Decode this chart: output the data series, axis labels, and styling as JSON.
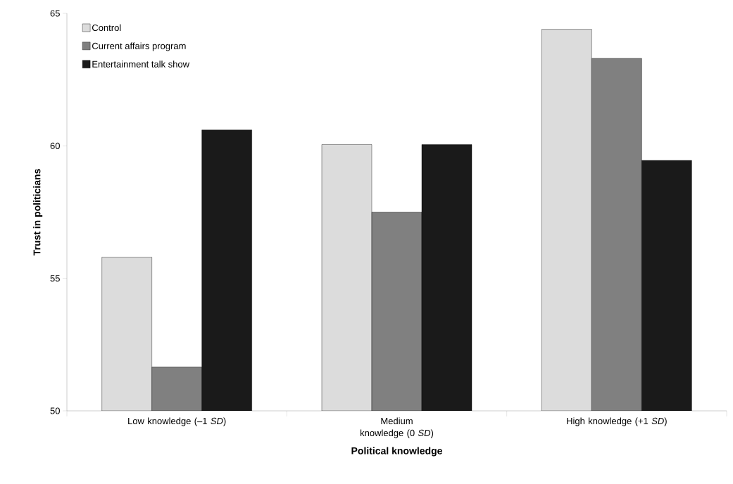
{
  "chart_data": {
    "type": "bar",
    "xlabel": "Political knowledge",
    "ylabel": "Trust in politicians",
    "categories": [
      "Low knowledge (–1 *SD*)",
      "Medium knowledge (0 *SD*)",
      "High knowledge (+1 *SD*)"
    ],
    "series": [
      {
        "name": "Control",
        "color": "#dcdcdc",
        "values": [
          55.8,
          60.05,
          64.4
        ]
      },
      {
        "name": "Current affairs program",
        "color": "#808080",
        "values": [
          51.65,
          57.5,
          63.3
        ]
      },
      {
        "name": "Entertainment talk show",
        "color": "#1a1a1a",
        "values": [
          60.6,
          60.05,
          59.45
        ]
      }
    ],
    "ylim": [
      50,
      65
    ],
    "yticks": [
      50,
      55,
      60,
      65
    ],
    "grid": false,
    "legend": "top left"
  }
}
